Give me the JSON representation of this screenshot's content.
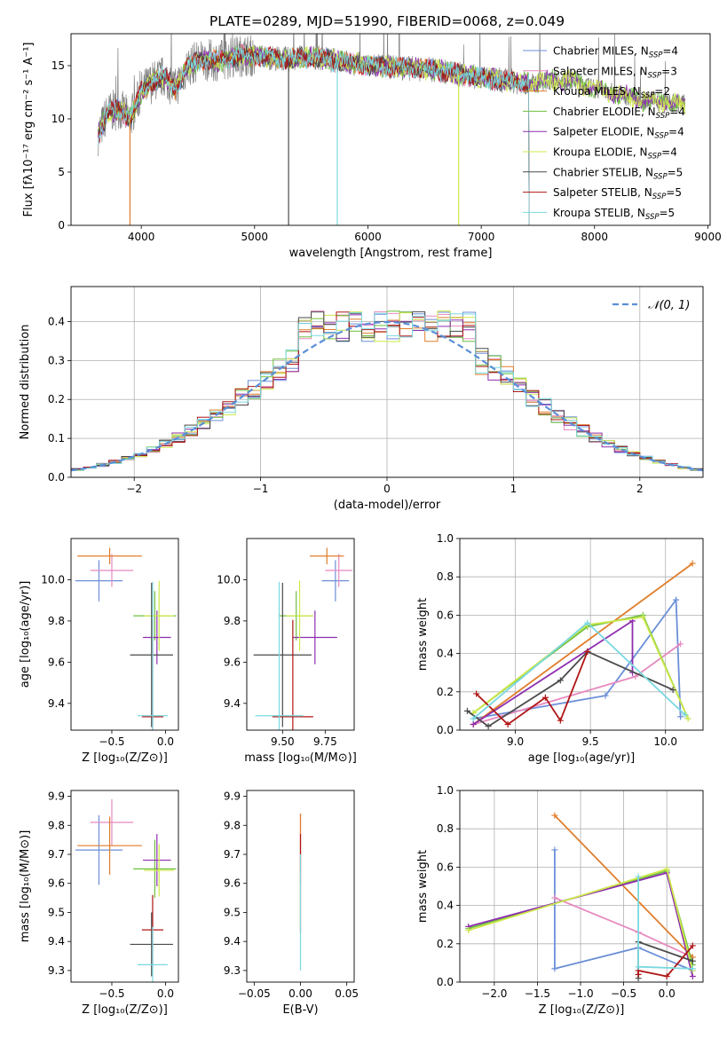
{
  "figure_title": "PLATE=0289, MJD=51990, FIBERID=0068, z=0.049",
  "colors": {
    "Chabrier MILES": "#6a8fd8",
    "Salpeter MILES": "#e889c0",
    "Kroupa MILES": "#e07d2a",
    "Chabrier ELODIE": "#6fbf3f",
    "Salpeter ELODIE": "#8e2db0",
    "Kroupa ELODIE": "#cde84a",
    "Chabrier STELIB": "#4a4a4a",
    "Salpeter STELIB": "#b01515",
    "Kroupa STELIB": "#7ad8e0"
  },
  "chart_data": [
    {
      "id": "spectrum",
      "type": "line",
      "xlabel": "wavelength [Angstrom, rest frame]",
      "ylabel": "Flux [fλ10⁻¹⁷ erg cm⁻² s⁻¹ A⁻¹]",
      "xlim": [
        3380,
        9020
      ],
      "ylim": [
        0,
        18
      ],
      "xticks": [
        4000,
        5000,
        6000,
        7000,
        8000,
        9000
      ],
      "yticks": [
        0,
        5,
        10,
        15
      ],
      "grid": false,
      "legend_position": "top-right",
      "legend": [
        {
          "name": "Chabrier MILES",
          "label": "Chabrier MILES, N",
          "sub": "SSP",
          "suffix": "=4"
        },
        {
          "name": "Salpeter MILES",
          "label": "Salpeter MILES, N",
          "sub": "SSP",
          "suffix": "=3"
        },
        {
          "name": "Kroupa MILES",
          "label": "Kroupa MILES, N",
          "sub": "SSP",
          "suffix": "=2"
        },
        {
          "name": "Chabrier ELODIE",
          "label": "Chabrier ELODIE, N",
          "sub": "SSP",
          "suffix": "=4"
        },
        {
          "name": "Salpeter ELODIE",
          "label": "Salpeter ELODIE, N",
          "sub": "SSP",
          "suffix": "=4"
        },
        {
          "name": "Kroupa ELODIE",
          "label": "Kroupa ELODIE, N",
          "sub": "SSP",
          "suffix": "=4"
        },
        {
          "name": "Chabrier STELIB",
          "label": "Chabrier STELIB, N",
          "sub": "SSP",
          "suffix": "=5"
        },
        {
          "name": "Salpeter STELIB",
          "label": "Salpeter STELIB, N",
          "sub": "SSP",
          "suffix": "=5"
        },
        {
          "name": "Kroupa STELIB",
          "label": "Kroupa STELIB, N",
          "sub": "SSP",
          "suffix": "=5"
        }
      ],
      "data_color": "#808080",
      "continuum_x": [
        3620,
        3700,
        3800,
        3900,
        4000,
        4100,
        4200,
        4300,
        4400,
        4500,
        4700,
        4900,
        5100,
        5300,
        5500,
        5700,
        6000,
        6300,
        6600,
        6900,
        7200,
        7400,
        7600,
        7800,
        8000,
        8200,
        8400,
        8600,
        8800
      ],
      "continuum_y": [
        8.5,
        10.5,
        11.0,
        10.0,
        12.5,
        13.5,
        14.0,
        12.8,
        14.8,
        15.5,
        15.5,
        16.0,
        15.8,
        15.6,
        15.8,
        15.5,
        15.0,
        14.8,
        14.6,
        14.0,
        13.6,
        13.4,
        13.6,
        13.6,
        12.8,
        12.4,
        11.8,
        11.6,
        11.4
      ]
    },
    {
      "id": "residuals",
      "type": "line",
      "xlabel": "(data-model)/error",
      "ylabel": "Normed distribution",
      "xlim": [
        -2.5,
        2.5
      ],
      "ylim": [
        0,
        0.49
      ],
      "xticks": [
        -2,
        -1,
        0,
        1,
        2
      ],
      "yticks": [
        0.0,
        0.1,
        0.2,
        0.3,
        0.4
      ],
      "grid": true,
      "legend_position": "top-right",
      "gaussian_label": "𝒩(0, 1)",
      "gaussian_color": "#5a8fd8"
    },
    {
      "id": "age_vs_Z",
      "type": "scatter",
      "xlabel": "Z [log₁₀(Z/Z⊙)]",
      "ylabel": "age  [log₁₀(age/yr)]",
      "xlim": [
        -0.88,
        0.12
      ],
      "ylim": [
        9.27,
        10.2
      ],
      "xticks": [
        -0.5,
        0.0
      ],
      "yticks": [
        9.4,
        9.6,
        9.8,
        10.0
      ],
      "grid": false,
      "points": [
        {
          "name": "Chabrier MILES",
          "x": -0.62,
          "y": 9.995,
          "xerr": 0.22,
          "yerr": 0.1
        },
        {
          "name": "Salpeter MILES",
          "x": -0.5,
          "y": 10.045,
          "xerr": 0.2,
          "yerr": 0.08
        },
        {
          "name": "Kroupa MILES",
          "x": -0.52,
          "y": 10.115,
          "xerr": 0.3,
          "yerr": 0.04
        },
        {
          "name": "Chabrier ELODIE",
          "x": -0.1,
          "y": 9.825,
          "xerr": 0.2,
          "yerr": 0.12
        },
        {
          "name": "Salpeter ELODIE",
          "x": -0.08,
          "y": 9.72,
          "xerr": 0.13,
          "yerr": 0.13
        },
        {
          "name": "Kroupa ELODIE",
          "x": -0.06,
          "y": 9.825,
          "xerr": 0.14,
          "yerr": 0.17
        },
        {
          "name": "Chabrier STELIB",
          "x": -0.13,
          "y": 9.635,
          "xerr": 0.2,
          "yerr": 0.35
        },
        {
          "name": "Salpeter STELIB",
          "x": -0.12,
          "y": 9.335,
          "xerr": 0.1,
          "yerr": 0.47
        },
        {
          "name": "Kroupa STELIB",
          "x": -0.12,
          "y": 9.34,
          "xerr": 0.14,
          "yerr": 0.65
        }
      ]
    },
    {
      "id": "age_vs_mass",
      "type": "scatter",
      "xlabel": "mass [log₁₀(M/M⊙)]",
      "ylabel": "",
      "xlim": [
        9.29,
        9.92
      ],
      "ylim": [
        9.27,
        10.2
      ],
      "xticks": [
        9.5,
        9.75
      ],
      "xtick_labels": [
        "9.50",
        "9.75"
      ],
      "yticks": [
        9.4,
        9.6,
        9.8,
        10.0
      ],
      "grid": false,
      "points": [
        {
          "name": "Chabrier MILES",
          "x": 9.81,
          "y": 9.995,
          "xerr": 0.08,
          "yerr": 0.1
        },
        {
          "name": "Salpeter MILES",
          "x": 9.83,
          "y": 10.045,
          "xerr": 0.08,
          "yerr": 0.08
        },
        {
          "name": "Kroupa MILES",
          "x": 9.76,
          "y": 10.115,
          "xerr": 0.1,
          "yerr": 0.04
        },
        {
          "name": "Chabrier ELODIE",
          "x": 9.58,
          "y": 9.825,
          "xerr": 0.1,
          "yerr": 0.12
        },
        {
          "name": "Salpeter ELODIE",
          "x": 9.69,
          "y": 9.72,
          "xerr": 0.13,
          "yerr": 0.13
        },
        {
          "name": "Kroupa ELODIE",
          "x": 9.6,
          "y": 9.825,
          "xerr": 0.08,
          "yerr": 0.17
        },
        {
          "name": "Chabrier STELIB",
          "x": 9.5,
          "y": 9.635,
          "xerr": 0.17,
          "yerr": 0.35
        },
        {
          "name": "Salpeter STELIB",
          "x": 9.56,
          "y": 9.335,
          "xerr": 0.12,
          "yerr": 0.47
        },
        {
          "name": "Kroupa STELIB",
          "x": 9.48,
          "y": 9.34,
          "xerr": 0.14,
          "yerr": 0.65
        }
      ]
    },
    {
      "id": "weight_vs_age",
      "type": "line",
      "xlabel": "age  [log₁₀(age/yr)]",
      "ylabel": "mass weight",
      "xlim": [
        8.63,
        10.25
      ],
      "ylim": [
        0,
        1
      ],
      "xticks": [
        9.0,
        9.5,
        10.0
      ],
      "yticks": [
        0.0,
        0.2,
        0.4,
        0.6,
        0.8,
        1.0
      ],
      "grid": true,
      "series": [
        {
          "name": "Chabrier MILES",
          "x": [
            8.72,
            9.6,
            10.07,
            10.1
          ],
          "y": [
            0.06,
            0.18,
            0.68,
            0.07
          ]
        },
        {
          "name": "Salpeter MILES",
          "x": [
            8.72,
            9.8,
            10.1
          ],
          "y": [
            0.03,
            0.28,
            0.45
          ]
        },
        {
          "name": "Kroupa MILES",
          "x": [
            8.72,
            10.18
          ],
          "y": [
            0.03,
            0.87
          ]
        },
        {
          "name": "Chabrier ELODIE",
          "x": [
            8.72,
            9.48,
            9.85,
            10.15
          ],
          "y": [
            0.09,
            0.54,
            0.6,
            0.06
          ]
        },
        {
          "name": "Salpeter ELODIE",
          "x": [
            8.72,
            9.78,
            9.78
          ],
          "y": [
            0.03,
            0.57,
            0.3
          ]
        },
        {
          "name": "Kroupa ELODIE",
          "x": [
            8.72,
            9.48,
            9.85,
            10.15
          ],
          "y": [
            0.09,
            0.55,
            0.59,
            0.06
          ]
        },
        {
          "name": "Chabrier STELIB",
          "x": [
            8.68,
            8.82,
            9.3,
            9.48,
            10.05
          ],
          "y": [
            0.1,
            0.02,
            0.26,
            0.41,
            0.21
          ]
        },
        {
          "name": "Salpeter STELIB",
          "x": [
            8.74,
            8.95,
            9.2,
            9.3,
            9.48
          ],
          "y": [
            0.19,
            0.03,
            0.17,
            0.05,
            0.41
          ]
        },
        {
          "name": "Kroupa STELIB",
          "x": [
            8.72,
            9.48,
            10.13
          ],
          "y": [
            0.06,
            0.56,
            0.08
          ]
        }
      ]
    },
    {
      "id": "mass_vs_Z",
      "type": "scatter",
      "xlabel": "Z [log₁₀(Z/Z⊙)]",
      "ylabel": "mass [log₁₀(M/M⊙)]",
      "xlim": [
        -0.88,
        0.12
      ],
      "ylim": [
        9.26,
        9.92
      ],
      "xticks": [
        -0.5,
        0.0
      ],
      "yticks": [
        9.3,
        9.4,
        9.5,
        9.6,
        9.7,
        9.8,
        9.9
      ],
      "grid": false,
      "points": [
        {
          "name": "Chabrier MILES",
          "x": -0.62,
          "y": 9.715,
          "xerr": 0.22,
          "yerr": 0.12
        },
        {
          "name": "Salpeter MILES",
          "x": -0.5,
          "y": 9.81,
          "xerr": 0.2,
          "yerr": 0.08
        },
        {
          "name": "Kroupa MILES",
          "x": -0.52,
          "y": 9.73,
          "xerr": 0.3,
          "yerr": 0.1
        },
        {
          "name": "Chabrier ELODIE",
          "x": -0.1,
          "y": 9.65,
          "xerr": 0.2,
          "yerr": 0.1
        },
        {
          "name": "Salpeter ELODIE",
          "x": -0.08,
          "y": 9.68,
          "xerr": 0.13,
          "yerr": 0.09
        },
        {
          "name": "Kroupa ELODIE",
          "x": -0.06,
          "y": 9.645,
          "xerr": 0.14,
          "yerr": 0.09
        },
        {
          "name": "Chabrier STELIB",
          "x": -0.13,
          "y": 9.39,
          "xerr": 0.2,
          "yerr": 0.11
        },
        {
          "name": "Salpeter STELIB",
          "x": -0.12,
          "y": 9.44,
          "xerr": 0.1,
          "yerr": 0.12
        },
        {
          "name": "Kroupa STELIB",
          "x": -0.12,
          "y": 9.32,
          "xerr": 0.14,
          "yerr": 0.13
        }
      ]
    },
    {
      "id": "mass_vs_ebv",
      "type": "scatter",
      "xlabel": "E(B-V)",
      "ylabel": "",
      "xlim": [
        -0.058,
        0.058
      ],
      "ylim": [
        9.26,
        9.92
      ],
      "xticks": [
        -0.05,
        0.0,
        0.05
      ],
      "xtick_labels": [
        "−0.05",
        "0.00",
        "0.05"
      ],
      "yticks": [
        9.3,
        9.4,
        9.5,
        9.6,
        9.7,
        9.8,
        9.9
      ],
      "grid": false,
      "points": [
        {
          "name": "Salpeter MILES",
          "x": 0.0,
          "y": 9.72,
          "xerr": 0.0,
          "yerr": 0.12
        },
        {
          "name": "Kroupa MILES",
          "x": 0.0,
          "y": 9.74,
          "xerr": 0.0,
          "yerr": 0.1
        },
        {
          "name": "Salpeter STELIB",
          "x": 0.0,
          "y": 9.6,
          "xerr": 0.0,
          "yerr": 0.17
        },
        {
          "name": "Kroupa STELIB",
          "x": 0.0,
          "y": 9.5,
          "xerr": 0.0,
          "yerr": 0.2
        }
      ]
    },
    {
      "id": "weight_vs_Z",
      "type": "line",
      "xlabel": "Z [log₁₀(Z/Z⊙)]",
      "ylabel": "mass weight",
      "xlim": [
        -2.4,
        0.42
      ],
      "ylim": [
        0,
        1
      ],
      "xticks": [
        -2.0,
        -1.5,
        -1.0,
        -0.5,
        0.0
      ],
      "yticks": [
        0.0,
        0.2,
        0.4,
        0.6,
        0.8,
        1.0
      ],
      "grid": true,
      "series": [
        {
          "name": "Chabrier MILES",
          "x": [
            -1.3,
            -1.3,
            -0.33,
            0.3
          ],
          "y": [
            0.69,
            0.07,
            0.18,
            0.06
          ]
        },
        {
          "name": "Salpeter MILES",
          "x": [
            -1.3,
            -0.33,
            0.3
          ],
          "y": [
            0.44,
            0.26,
            0.13
          ]
        },
        {
          "name": "Kroupa MILES",
          "x": [
            -1.3,
            0.3
          ],
          "y": [
            0.87,
            0.13
          ]
        },
        {
          "name": "Chabrier ELODIE",
          "x": [
            -2.3,
            0.0,
            0.3
          ],
          "y": [
            0.28,
            0.58,
            0.09
          ]
        },
        {
          "name": "Salpeter ELODIE",
          "x": [
            -2.3,
            0.0,
            0.3
          ],
          "y": [
            0.29,
            0.57,
            0.03
          ]
        },
        {
          "name": "Kroupa ELODIE",
          "x": [
            -2.3,
            0.0,
            0.3
          ],
          "y": [
            0.27,
            0.59,
            0.06
          ]
        },
        {
          "name": "Chabrier STELIB",
          "x": [
            -0.33,
            -0.33,
            0.3
          ],
          "y": [
            0.02,
            0.21,
            0.11
          ]
        },
        {
          "name": "Salpeter STELIB",
          "x": [
            -0.33,
            -0.33,
            0.0,
            0.3
          ],
          "y": [
            0.04,
            0.06,
            0.03,
            0.19
          ]
        },
        {
          "name": "Kroupa STELIB",
          "x": [
            -0.33,
            -0.33,
            0.3
          ],
          "y": [
            0.55,
            0.08,
            0.07
          ]
        }
      ]
    }
  ]
}
